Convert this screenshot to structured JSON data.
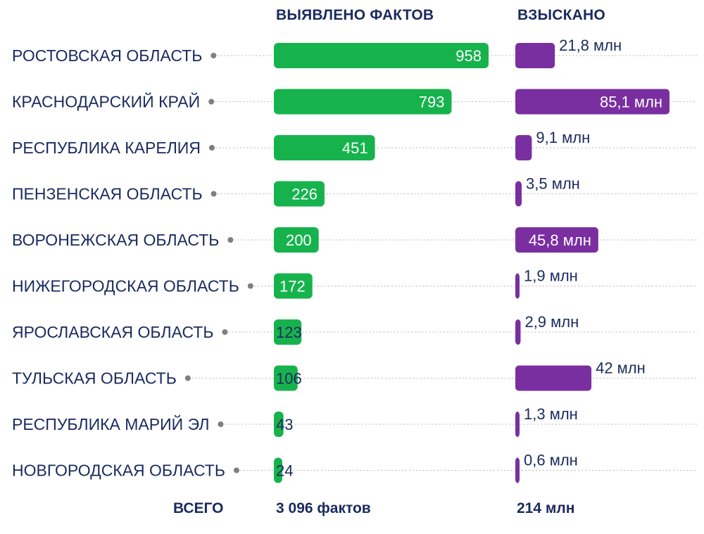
{
  "headers": {
    "facts": "ВЫЯВЛЕНО ФАКТОВ",
    "collected": "ВЗЫСКАНО"
  },
  "totals": {
    "label": "ВСЕГО",
    "facts": "3 096 фактов",
    "collected": "214 млн"
  },
  "colors": {
    "facts_bar": "#16b34d",
    "collected_bar": "#7a2fa0",
    "text": "#1a2a5e",
    "guide": "#b7b7b7"
  },
  "chart_data": [
    {
      "type": "bar",
      "orientation": "horizontal",
      "title": "ВЫЯВЛЕНО ФАКТОВ",
      "categories": [
        "РОСТОВСКАЯ ОБЛАСТЬ",
        "КРАСНОДАРСКИЙ КРАЙ",
        "РЕСПУБЛИКА КАРЕЛИЯ",
        "ПЕНЗЕНСКАЯ ОБЛАСТЬ",
        "ВОРОНЕЖСКАЯ ОБЛАСТЬ",
        "НИЖЕГОРОДСКАЯ ОБЛАСТЬ",
        "ЯРОСЛАВСКАЯ ОБЛАСТЬ",
        "ТУЛЬСКАЯ ОБЛАСТЬ",
        "РЕСПУБЛИКА МАРИЙ ЭЛ",
        "НОВГОРОДСКАЯ ОБЛАСТЬ"
      ],
      "values": [
        958,
        793,
        451,
        226,
        200,
        172,
        123,
        106,
        43,
        24
      ],
      "labels": [
        "958",
        "793",
        "451",
        "226",
        "200",
        "172",
        "123",
        "106",
        "43",
        "24"
      ],
      "xlim": [
        0,
        958
      ]
    },
    {
      "type": "bar",
      "orientation": "horizontal",
      "title": "ВЗЫСКАНО",
      "categories": [
        "РОСТОВСКАЯ ОБЛАСТЬ",
        "КРАСНОДАРСКИЙ КРАЙ",
        "РЕСПУБЛИКА КАРЕЛИЯ",
        "ПЕНЗЕНСКАЯ ОБЛАСТЬ",
        "ВОРОНЕЖСКАЯ ОБЛАСТЬ",
        "НИЖЕГОРОДСКАЯ ОБЛАСТЬ",
        "ЯРОСЛАВСКАЯ ОБЛАСТЬ",
        "ТУЛЬСКАЯ ОБЛАСТЬ",
        "РЕСПУБЛИКА МАРИЙ ЭЛ",
        "НОВГОРОДСКАЯ ОБЛАСТЬ"
      ],
      "values": [
        21.8,
        85.1,
        9.1,
        3.5,
        45.8,
        1.9,
        2.9,
        42,
        1.3,
        0.6
      ],
      "labels": [
        "21,8 млн",
        "85,1 млн",
        "9,1 млн",
        "3,5 млн",
        "45,8 млн",
        "1,9 млн",
        "2,9 млн",
        "42 млн",
        "1,3 млн",
        "0,6 млн"
      ],
      "xlim": [
        0,
        85.1
      ]
    }
  ]
}
